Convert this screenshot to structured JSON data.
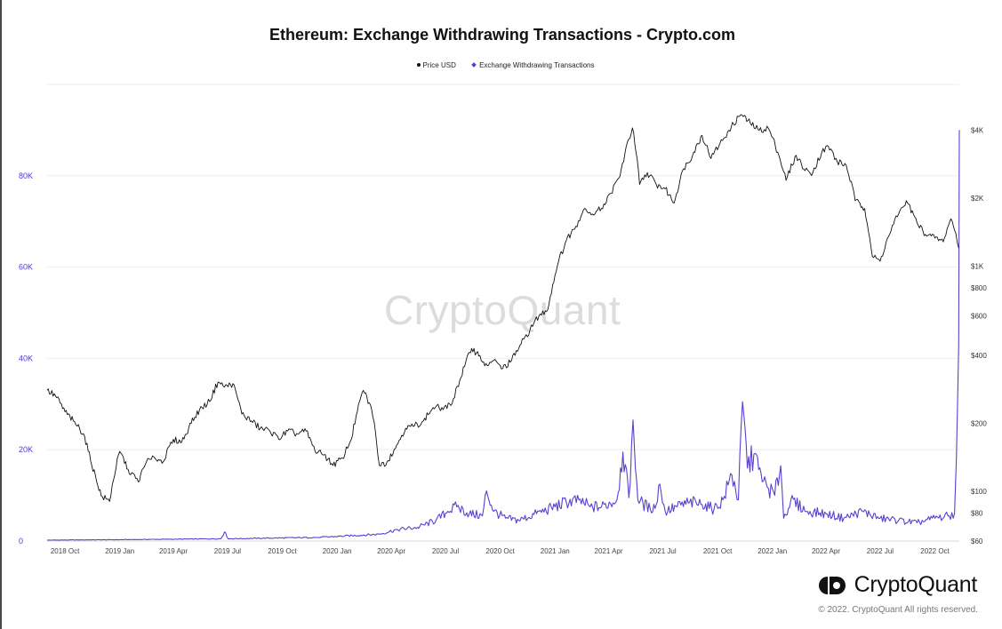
{
  "header": {
    "title": "Ethereum: Exchange Withdrawing Transactions - Crypto.com"
  },
  "legend": {
    "price_label": "Price USD",
    "tx_label": "Exchange Withdrawing Transactions"
  },
  "watermark": "CryptoQuant",
  "footer": {
    "brand": "CryptoQuant",
    "copyright": "© 2022. CryptoQuant All rights reserved."
  },
  "colors": {
    "price": "#111111",
    "transactions": "#5b3fd0",
    "grid": "#eeeeee"
  },
  "chart_data": {
    "type": "line",
    "title": "Ethereum: Exchange Withdrawing Transactions - Crypto.com",
    "x_ticks": [
      "2018 Oct",
      "2019 Jan",
      "2019 Apr",
      "2019 Jul",
      "2019 Oct",
      "2020 Jan",
      "2020 Apr",
      "2020 Jul",
      "2020 Oct",
      "2021 Jan",
      "2021 Apr",
      "2021 Jul",
      "2021 Oct",
      "2022 Jan",
      "2022 Apr",
      "2022 Jul",
      "2022 Oct"
    ],
    "left_axis": {
      "scale": "linear",
      "ticks": [
        "0",
        "20K",
        "40K",
        "60K",
        "80K"
      ],
      "tick_values": [
        0,
        20000,
        40000,
        60000,
        80000
      ],
      "range": [
        0,
        100000
      ]
    },
    "right_axis": {
      "scale": "log",
      "ticks": [
        "$60",
        "$80",
        "$100",
        "$200",
        "$400",
        "$600",
        "$800",
        "$1K",
        "$2K",
        "$4K"
      ],
      "tick_values": [
        60,
        80,
        100,
        200,
        400,
        600,
        800,
        1000,
        2000,
        4000
      ]
    },
    "grid": true,
    "legend_position": "top-center",
    "series": [
      {
        "name": "Price USD",
        "axis": "right",
        "x": [
          "2018-09-01",
          "2018-09-15",
          "2018-10-01",
          "2018-10-15",
          "2018-11-01",
          "2018-11-15",
          "2018-12-01",
          "2018-12-15",
          "2019-01-01",
          "2019-01-15",
          "2019-02-01",
          "2019-02-15",
          "2019-03-01",
          "2019-03-15",
          "2019-04-01",
          "2019-04-15",
          "2019-05-01",
          "2019-05-15",
          "2019-06-01",
          "2019-06-15",
          "2019-06-26",
          "2019-07-10",
          "2019-07-25",
          "2019-08-10",
          "2019-08-25",
          "2019-09-10",
          "2019-09-25",
          "2019-10-10",
          "2019-10-25",
          "2019-11-10",
          "2019-11-25",
          "2019-12-10",
          "2019-12-25",
          "2020-01-10",
          "2020-01-25",
          "2020-02-14",
          "2020-02-28",
          "2020-03-12",
          "2020-03-25",
          "2020-04-10",
          "2020-04-25",
          "2020-05-10",
          "2020-05-25",
          "2020-06-10",
          "2020-06-25",
          "2020-07-10",
          "2020-07-25",
          "2020-08-14",
          "2020-08-28",
          "2020-09-05",
          "2020-09-20",
          "2020-10-05",
          "2020-10-20",
          "2020-11-05",
          "2020-11-20",
          "2020-12-05",
          "2020-12-20",
          "2021-01-05",
          "2021-01-20",
          "2021-02-05",
          "2021-02-20",
          "2021-03-05",
          "2021-03-20",
          "2021-04-05",
          "2021-04-20",
          "2021-05-11",
          "2021-05-23",
          "2021-06-05",
          "2021-06-20",
          "2021-07-05",
          "2021-07-20",
          "2021-08-05",
          "2021-08-20",
          "2021-09-05",
          "2021-09-20",
          "2021-10-05",
          "2021-10-20",
          "2021-11-09",
          "2021-11-25",
          "2021-12-10",
          "2021-12-25",
          "2022-01-10",
          "2022-01-24",
          "2022-02-10",
          "2022-02-25",
          "2022-03-10",
          "2022-03-25",
          "2022-04-05",
          "2022-04-20",
          "2022-05-05",
          "2022-05-20",
          "2022-06-05",
          "2022-06-18",
          "2022-07-01",
          "2022-07-15",
          "2022-08-01",
          "2022-08-14",
          "2022-09-01",
          "2022-09-15",
          "2022-10-01",
          "2022-10-15",
          "2022-10-28",
          "2022-11-05",
          "2022-11-10"
        ],
        "values": [
          280,
          265,
          225,
          205,
          180,
          130,
          95,
          90,
          150,
          125,
          110,
          135,
          140,
          135,
          170,
          165,
          200,
          230,
          250,
          305,
          290,
          300,
          220,
          205,
          190,
          185,
          170,
          185,
          180,
          185,
          150,
          145,
          130,
          140,
          170,
          280,
          230,
          130,
          135,
          160,
          190,
          195,
          205,
          235,
          235,
          240,
          310,
          430,
          400,
          360,
          380,
          350,
          380,
          450,
          520,
          600,
          640,
          1000,
          1300,
          1500,
          1800,
          1700,
          1800,
          2100,
          2500,
          4100,
          2300,
          2600,
          2300,
          2200,
          1900,
          2700,
          3100,
          3800,
          3000,
          3500,
          4000,
          4700,
          4300,
          4000,
          4100,
          3200,
          2400,
          3100,
          2650,
          2600,
          3200,
          3400,
          2900,
          2800,
          1950,
          1800,
          1100,
          1050,
          1350,
          1700,
          1950,
          1550,
          1380,
          1330,
          1280,
          1620,
          1400,
          1200
        ]
      },
      {
        "name": "Exchange Withdrawing Transactions",
        "axis": "left",
        "x": [
          "2018-09-01",
          "2019-01-01",
          "2019-06-20",
          "2019-06-26",
          "2019-07-02",
          "2019-12-01",
          "2020-03-12",
          "2020-04-10",
          "2020-05-15",
          "2020-06-15",
          "2020-07-05",
          "2020-07-20",
          "2020-08-10",
          "2020-09-01",
          "2020-09-08",
          "2020-09-20",
          "2020-10-10",
          "2020-11-01",
          "2020-12-01",
          "2021-01-01",
          "2021-01-20",
          "2021-02-10",
          "2021-03-01",
          "2021-03-20",
          "2021-04-15",
          "2021-04-25",
          "2021-05-05",
          "2021-05-12",
          "2021-05-20",
          "2021-06-10",
          "2021-06-20",
          "2021-06-26",
          "2021-07-05",
          "2021-07-25",
          "2021-08-15",
          "2021-09-05",
          "2021-09-25",
          "2021-10-10",
          "2021-10-25",
          "2021-11-05",
          "2021-11-12",
          "2021-11-20",
          "2021-12-01",
          "2021-12-15",
          "2022-01-05",
          "2022-01-15",
          "2022-01-20",
          "2022-02-01",
          "2022-03-01",
          "2022-04-01",
          "2022-05-01",
          "2022-06-01",
          "2022-07-01",
          "2022-08-01",
          "2022-09-01",
          "2022-10-01",
          "2022-10-25",
          "2022-11-03",
          "2022-11-06",
          "2022-11-08",
          "2022-11-10",
          "2022-11-11"
        ],
        "values": [
          200,
          300,
          500,
          2000,
          500,
          800,
          1500,
          2500,
          3000,
          4500,
          6500,
          7500,
          6000,
          5500,
          11000,
          6500,
          5000,
          4500,
          6000,
          7500,
          8500,
          9000,
          7500,
          7500,
          9000,
          19500,
          9500,
          26500,
          9000,
          7000,
          8000,
          12500,
          6500,
          7500,
          8500,
          8000,
          7000,
          9000,
          14500,
          9000,
          30500,
          16000,
          19000,
          13000,
          10000,
          16500,
          5000,
          9000,
          6500,
          6000,
          5000,
          6500,
          5000,
          4500,
          4000,
          5000,
          5500,
          6000,
          18000,
          30000,
          43000,
          90000
        ]
      }
    ]
  }
}
